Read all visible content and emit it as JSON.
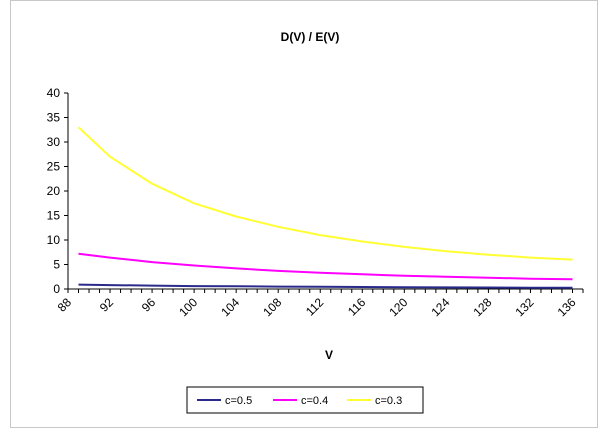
{
  "chart_data": {
    "type": "line",
    "title": "D(V) / E(V)",
    "xlabel": "V",
    "ylabel": "",
    "xlim": [
      88,
      137
    ],
    "ylim": [
      0,
      40
    ],
    "xticks": [
      88,
      92,
      96,
      100,
      104,
      108,
      112,
      116,
      120,
      124,
      128,
      132,
      136
    ],
    "yticks": [
      0,
      5,
      10,
      15,
      20,
      25,
      30,
      35,
      40
    ],
    "grid": false,
    "legend_position": "bottom",
    "x": [
      89,
      92,
      96,
      100,
      104,
      108,
      112,
      116,
      120,
      124,
      128,
      132,
      136
    ],
    "series": [
      {
        "name": "c=0.5",
        "color": "#2a2a8a",
        "values": [
          0.9,
          0.8,
          0.7,
          0.6,
          0.55,
          0.5,
          0.45,
          0.4,
          0.35,
          0.32,
          0.3,
          0.27,
          0.25
        ]
      },
      {
        "name": "c=0.4",
        "color": "#ff00ff",
        "values": [
          7.2,
          6.4,
          5.5,
          4.8,
          4.2,
          3.7,
          3.3,
          3.0,
          2.7,
          2.5,
          2.3,
          2.1,
          2.0
        ]
      },
      {
        "name": "c=0.3",
        "color": "#ffff33",
        "values": [
          33.0,
          27.0,
          21.5,
          17.5,
          14.8,
          12.7,
          11.0,
          9.7,
          8.6,
          7.7,
          7.0,
          6.4,
          6.0
        ]
      }
    ]
  }
}
